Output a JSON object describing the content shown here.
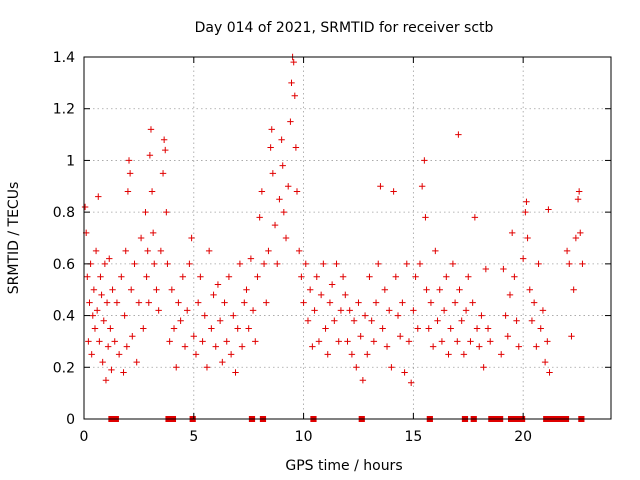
{
  "chart_data": {
    "type": "scatter",
    "title": "Day 014 of 2021, SRMTID for receiver sctb",
    "xlabel": "GPS time / hours",
    "ylabel": "SRMTID / TECUs",
    "xlim": [
      0,
      24
    ],
    "ylim": [
      0,
      1.4
    ],
    "xticks": [
      0,
      5,
      10,
      15,
      20
    ],
    "xtick_labels": [
      "0",
      "5",
      "10",
      "15",
      "20"
    ],
    "yticks": [
      0,
      0.2,
      0.4,
      0.6,
      0.8,
      1.0,
      1.2,
      1.4
    ],
    "ytick_labels": [
      "0",
      "0.2",
      "0.4",
      "0.6",
      "0.8",
      "1",
      "1.2",
      "1.4"
    ],
    "grid": true,
    "legend": "none",
    "marker": "+",
    "series": [
      {
        "name": "SRMTID",
        "color": "#e00000",
        "points": [
          [
            0.05,
            0.82
          ],
          [
            0.1,
            0.72
          ],
          [
            0.15,
            0.55
          ],
          [
            0.2,
            0.3
          ],
          [
            0.25,
            0.45
          ],
          [
            0.3,
            0.6
          ],
          [
            0.35,
            0.25
          ],
          [
            0.4,
            0.4
          ],
          [
            0.45,
            0.5
          ],
          [
            0.5,
            0.35
          ],
          [
            0.55,
            0.65
          ],
          [
            0.6,
            0.42
          ],
          [
            0.65,
            0.86
          ],
          [
            0.7,
            0.3
          ],
          [
            0.75,
            0.55
          ],
          [
            0.8,
            0.48
          ],
          [
            0.85,
            0.22
          ],
          [
            0.9,
            0.38
          ],
          [
            0.95,
            0.6
          ],
          [
            1.0,
            0.15
          ],
          [
            1.05,
            0.45
          ],
          [
            1.1,
            0.28
          ],
          [
            1.15,
            0.62
          ],
          [
            1.2,
            0.35
          ],
          [
            1.25,
            0.19
          ],
          [
            1.3,
            0.5
          ],
          [
            1.4,
            0.3
          ],
          [
            1.5,
            0.45
          ],
          [
            1.6,
            0.25
          ],
          [
            1.7,
            0.55
          ],
          [
            1.8,
            0.18
          ],
          [
            1.85,
            0.4
          ],
          [
            1.9,
            0.65
          ],
          [
            1.95,
            0.28
          ],
          [
            2.0,
            0.88
          ],
          [
            2.05,
            1.0
          ],
          [
            2.1,
            0.95
          ],
          [
            2.15,
            0.5
          ],
          [
            2.2,
            0.32
          ],
          [
            2.3,
            0.6
          ],
          [
            2.4,
            0.22
          ],
          [
            2.5,
            0.45
          ],
          [
            2.6,
            0.7
          ],
          [
            2.7,
            0.35
          ],
          [
            2.8,
            0.8
          ],
          [
            2.85,
            0.55
          ],
          [
            2.9,
            0.65
          ],
          [
            2.95,
            0.45
          ],
          [
            3.0,
            1.02
          ],
          [
            3.05,
            1.12
          ],
          [
            3.1,
            0.88
          ],
          [
            3.15,
            0.72
          ],
          [
            3.2,
            0.6
          ],
          [
            3.3,
            0.5
          ],
          [
            3.4,
            0.42
          ],
          [
            3.5,
            0.65
          ],
          [
            3.6,
            0.95
          ],
          [
            3.65,
            1.08
          ],
          [
            3.7,
            1.04
          ],
          [
            3.75,
            0.8
          ],
          [
            3.8,
            0.6
          ],
          [
            3.9,
            0.3
          ],
          [
            4.0,
            0.5
          ],
          [
            4.1,
            0.35
          ],
          [
            4.2,
            0.2
          ],
          [
            4.3,
            0.45
          ],
          [
            4.4,
            0.38
          ],
          [
            4.5,
            0.55
          ],
          [
            4.6,
            0.28
          ],
          [
            4.7,
            0.42
          ],
          [
            4.8,
            0.6
          ],
          [
            4.9,
            0.7
          ],
          [
            5.0,
            0.32
          ],
          [
            5.1,
            0.25
          ],
          [
            5.2,
            0.45
          ],
          [
            5.3,
            0.55
          ],
          [
            5.4,
            0.3
          ],
          [
            5.5,
            0.4
          ],
          [
            5.6,
            0.2
          ],
          [
            5.7,
            0.65
          ],
          [
            5.8,
            0.35
          ],
          [
            5.9,
            0.48
          ],
          [
            6.0,
            0.28
          ],
          [
            6.1,
            0.52
          ],
          [
            6.2,
            0.38
          ],
          [
            6.3,
            0.22
          ],
          [
            6.4,
            0.45
          ],
          [
            6.5,
            0.3
          ],
          [
            6.6,
            0.55
          ],
          [
            6.7,
            0.25
          ],
          [
            6.8,
            0.4
          ],
          [
            6.9,
            0.18
          ],
          [
            7.0,
            0.35
          ],
          [
            7.1,
            0.6
          ],
          [
            7.2,
            0.28
          ],
          [
            7.3,
            0.45
          ],
          [
            7.4,
            0.5
          ],
          [
            7.5,
            0.35
          ],
          [
            7.6,
            0.62
          ],
          [
            7.7,
            0.42
          ],
          [
            7.8,
            0.3
          ],
          [
            7.9,
            0.55
          ],
          [
            8.0,
            0.78
          ],
          [
            8.1,
            0.88
          ],
          [
            8.2,
            0.6
          ],
          [
            8.3,
            0.45
          ],
          [
            8.4,
            0.65
          ],
          [
            8.5,
            1.05
          ],
          [
            8.55,
            1.12
          ],
          [
            8.6,
            0.95
          ],
          [
            8.7,
            0.75
          ],
          [
            8.8,
            0.6
          ],
          [
            8.9,
            0.85
          ],
          [
            9.0,
            1.08
          ],
          [
            9.05,
            0.98
          ],
          [
            9.1,
            0.8
          ],
          [
            9.2,
            0.7
          ],
          [
            9.3,
            0.9
          ],
          [
            9.4,
            1.15
          ],
          [
            9.45,
            1.3
          ],
          [
            9.5,
            1.4
          ],
          [
            9.55,
            1.38
          ],
          [
            9.6,
            1.25
          ],
          [
            9.65,
            1.05
          ],
          [
            9.7,
            0.88
          ],
          [
            9.8,
            0.65
          ],
          [
            9.9,
            0.55
          ],
          [
            10.0,
            0.45
          ],
          [
            10.1,
            0.6
          ],
          [
            10.2,
            0.38
          ],
          [
            10.3,
            0.5
          ],
          [
            10.4,
            0.28
          ],
          [
            10.5,
            0.42
          ],
          [
            10.6,
            0.55
          ],
          [
            10.7,
            0.3
          ],
          [
            10.8,
            0.48
          ],
          [
            10.9,
            0.6
          ],
          [
            11.0,
            0.35
          ],
          [
            11.1,
            0.25
          ],
          [
            11.2,
            0.45
          ],
          [
            11.3,
            0.52
          ],
          [
            11.4,
            0.38
          ],
          [
            11.5,
            0.6
          ],
          [
            11.6,
            0.3
          ],
          [
            11.7,
            0.42
          ],
          [
            11.8,
            0.55
          ],
          [
            11.9,
            0.48
          ],
          [
            12.0,
            0.3
          ],
          [
            12.1,
            0.42
          ],
          [
            12.2,
            0.25
          ],
          [
            12.3,
            0.38
          ],
          [
            12.4,
            0.2
          ],
          [
            12.5,
            0.45
          ],
          [
            12.6,
            0.32
          ],
          [
            12.7,
            0.15
          ],
          [
            12.8,
            0.4
          ],
          [
            12.9,
            0.25
          ],
          [
            13.0,
            0.55
          ],
          [
            13.1,
            0.38
          ],
          [
            13.2,
            0.3
          ],
          [
            13.3,
            0.45
          ],
          [
            13.4,
            0.6
          ],
          [
            13.5,
            0.9
          ],
          [
            13.6,
            0.35
          ],
          [
            13.7,
            0.5
          ],
          [
            13.8,
            0.28
          ],
          [
            13.9,
            0.42
          ],
          [
            14.0,
            0.2
          ],
          [
            14.1,
            0.88
          ],
          [
            14.2,
            0.55
          ],
          [
            14.3,
            0.4
          ],
          [
            14.4,
            0.32
          ],
          [
            14.5,
            0.45
          ],
          [
            14.6,
            0.18
          ],
          [
            14.7,
            0.6
          ],
          [
            14.8,
            0.3
          ],
          [
            14.9,
            0.14
          ],
          [
            15.0,
            0.42
          ],
          [
            15.1,
            0.55
          ],
          [
            15.2,
            0.35
          ],
          [
            15.3,
            0.6
          ],
          [
            15.4,
            0.9
          ],
          [
            15.5,
            1.0
          ],
          [
            15.55,
            0.78
          ],
          [
            15.6,
            0.5
          ],
          [
            15.7,
            0.35
          ],
          [
            15.8,
            0.45
          ],
          [
            15.9,
            0.28
          ],
          [
            16.0,
            0.65
          ],
          [
            16.1,
            0.38
          ],
          [
            16.2,
            0.5
          ],
          [
            16.3,
            0.3
          ],
          [
            16.4,
            0.42
          ],
          [
            16.5,
            0.55
          ],
          [
            16.6,
            0.25
          ],
          [
            16.7,
            0.35
          ],
          [
            16.8,
            0.6
          ],
          [
            16.9,
            0.45
          ],
          [
            17.0,
            0.3
          ],
          [
            17.05,
            1.1
          ],
          [
            17.1,
            0.5
          ],
          [
            17.2,
            0.38
          ],
          [
            17.3,
            0.25
          ],
          [
            17.4,
            0.42
          ],
          [
            17.5,
            0.55
          ],
          [
            17.6,
            0.3
          ],
          [
            17.7,
            0.45
          ],
          [
            17.8,
            0.78
          ],
          [
            17.9,
            0.35
          ],
          [
            18.0,
            0.28
          ],
          [
            18.1,
            0.4
          ],
          [
            18.2,
            0.2
          ],
          [
            18.3,
            0.58
          ],
          [
            18.4,
            0.35
          ],
          [
            18.5,
            0.3
          ],
          [
            19.0,
            0.25
          ],
          [
            19.1,
            0.58
          ],
          [
            19.2,
            0.4
          ],
          [
            19.3,
            0.32
          ],
          [
            19.4,
            0.48
          ],
          [
            19.5,
            0.72
          ],
          [
            19.6,
            0.55
          ],
          [
            19.7,
            0.38
          ],
          [
            19.8,
            0.28
          ],
          [
            20.0,
            0.62
          ],
          [
            20.1,
            0.8
          ],
          [
            20.15,
            0.84
          ],
          [
            20.2,
            0.7
          ],
          [
            20.3,
            0.5
          ],
          [
            20.4,
            0.38
          ],
          [
            20.5,
            0.45
          ],
          [
            20.6,
            0.28
          ],
          [
            20.7,
            0.6
          ],
          [
            20.8,
            0.35
          ],
          [
            20.9,
            0.42
          ],
          [
            21.0,
            0.22
          ],
          [
            21.1,
            0.3
          ],
          [
            21.15,
            0.81
          ],
          [
            21.2,
            0.18
          ],
          [
            22.0,
            0.65
          ],
          [
            22.1,
            0.6
          ],
          [
            22.2,
            0.32
          ],
          [
            22.3,
            0.5
          ],
          [
            22.4,
            0.7
          ],
          [
            22.5,
            0.85
          ],
          [
            22.55,
            0.88
          ],
          [
            22.6,
            0.72
          ],
          [
            22.7,
            0.6
          ]
        ]
      }
    ],
    "zero_segments": [
      [
        1.2,
        1.5
      ],
      [
        3.8,
        4.1
      ],
      [
        4.9,
        5.0
      ],
      [
        7.6,
        7.7
      ],
      [
        8.1,
        8.2
      ],
      [
        10.4,
        10.5
      ],
      [
        12.6,
        12.7
      ],
      [
        15.7,
        15.8
      ],
      [
        17.3,
        17.4
      ],
      [
        17.7,
        17.8
      ],
      [
        18.5,
        19.0
      ],
      [
        19.4,
        20.0
      ],
      [
        21.0,
        22.0
      ],
      [
        22.6,
        22.7
      ]
    ]
  }
}
